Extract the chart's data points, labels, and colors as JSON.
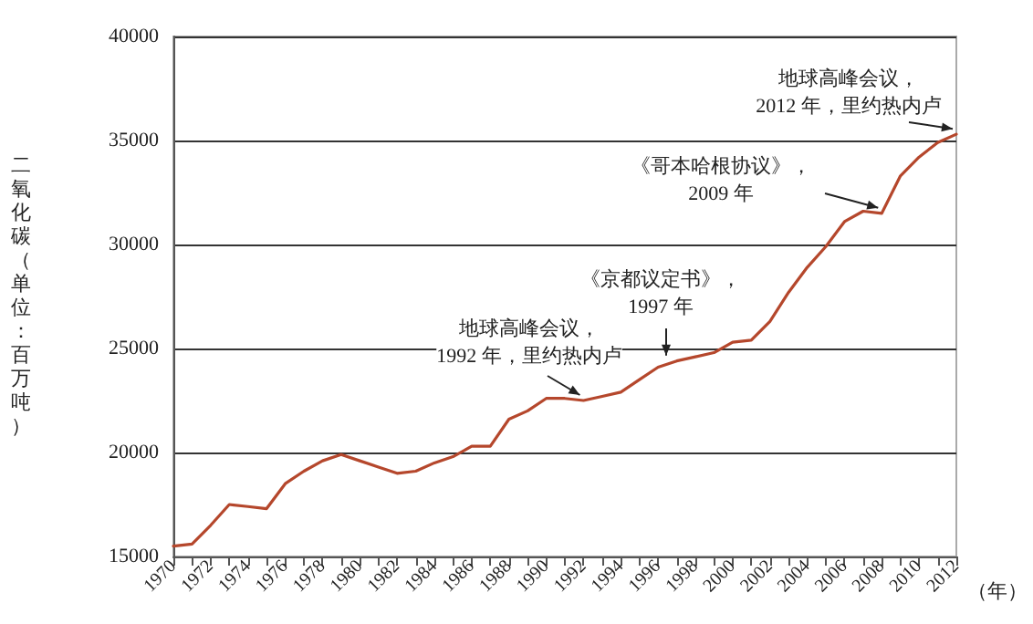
{
  "chart_data": {
    "type": "line",
    "xlabel": "（年）",
    "ylabel": "二氧化碳（单位：百万吨）",
    "categories": [
      "1970",
      null,
      "1972",
      null,
      "1974",
      null,
      "1976",
      null,
      "1978",
      null,
      "1980",
      null,
      "1982",
      null,
      "1984",
      null,
      "1986",
      null,
      "1988",
      null,
      "1990",
      null,
      "1992",
      null,
      "1994",
      null,
      "1996",
      null,
      "1998",
      null,
      "2000",
      null,
      "2002",
      null,
      "2004",
      null,
      "2006",
      null,
      "2008",
      null,
      "2010",
      null,
      "2012"
    ],
    "series": [
      {
        "color": "#b5472c",
        "values": [
          15500,
          15600,
          16500,
          17500,
          17400,
          17300,
          18500,
          19100,
          19600,
          19900,
          19600,
          19300,
          19000,
          19100,
          19500,
          19800,
          20300,
          20300,
          21600,
          22000,
          22600,
          22600,
          22500,
          22700,
          22900,
          23500,
          24100,
          24400,
          24600,
          24800,
          25300,
          25400,
          26300,
          27700,
          28900,
          29900,
          31100,
          31600,
          31500,
          33300,
          34200,
          34900,
          35300
        ]
      }
    ],
    "ylim": [
      15000,
      40000
    ],
    "yticks": [
      15000,
      20000,
      25000,
      30000,
      35000,
      40000
    ],
    "grid": "y",
    "marker": "none",
    "line_style": "solid",
    "annotations": [
      {
        "text": "地球高峰会议，\n1992 年，里约热内卢",
        "x": "1992",
        "y": 22500
      },
      {
        "text": "《京都议定书》，\n1997 年",
        "y": 24400
      },
      {
        "text": "《哥本哈根协议》，\n2009 年",
        "x": "2008",
        "y": 31500
      },
      {
        "text": "地球高峰会议，\n2012 年，里约热内卢",
        "x": "2012",
        "y": 35300
      }
    ]
  }
}
